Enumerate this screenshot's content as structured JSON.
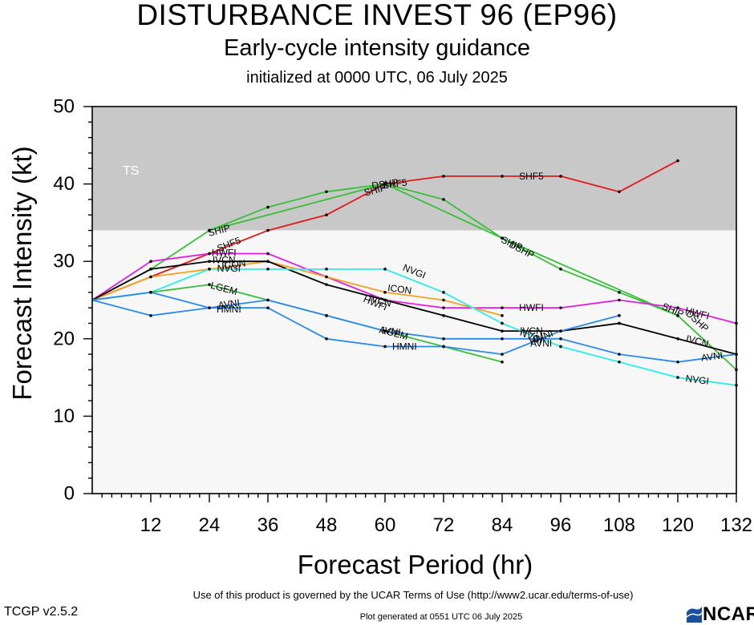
{
  "header": {
    "title": "DISTURBANCE INVEST 96 (EP96)",
    "subtitle": "Early-cycle intensity guidance",
    "init": "initialized at 0000 UTC, 06 July 2025"
  },
  "footer": {
    "terms": "Use of this product is governed by the UCAR Terms of Use (http://www2.ucar.edu/terms-of-use)",
    "version": "TCGP v2.5.2",
    "generated": "Plot generated at 0551 UTC   06 July 2025",
    "logo_text": "NCAR"
  },
  "chart_data": {
    "type": "line",
    "xlabel": "Forecast Period (hr)",
    "ylabel": "Forecast Intensity (kt)",
    "xlim": [
      0,
      132
    ],
    "ylim": [
      0,
      50
    ],
    "x_ticks": [
      12,
      24,
      36,
      48,
      60,
      72,
      84,
      96,
      108,
      120,
      132
    ],
    "y_ticks": [
      0,
      10,
      20,
      30,
      40,
      50
    ],
    "bands": [
      {
        "label": "TS",
        "from": 34,
        "to": 50,
        "color": "#c8c8c8"
      },
      {
        "label": "",
        "from": 0,
        "to": 34,
        "color": "#f7f7f7"
      }
    ],
    "series": [
      {
        "name": "SHF5",
        "color": "#e8161b",
        "x": [
          0,
          12,
          24,
          36,
          48,
          60,
          72,
          84,
          96,
          108,
          120
        ],
        "y": [
          25,
          28,
          31,
          34,
          36,
          40,
          41,
          41,
          41,
          39,
          43
        ],
        "labels": [
          {
            "x": 28,
            "y": 32.2
          },
          {
            "x": 62,
            "y": 40
          },
          {
            "x": 90,
            "y": 41
          }
        ]
      },
      {
        "name": "DSHP",
        "color": "#37c037",
        "x": [
          0,
          12,
          24,
          36,
          48,
          60,
          72,
          84,
          96,
          108,
          120,
          132
        ],
        "y": [
          25,
          29,
          34,
          37,
          39,
          40,
          38,
          33,
          29,
          26,
          23,
          16
        ],
        "labels": [
          {
            "x": 60,
            "y": 40
          },
          {
            "x": 88,
            "y": 31.5
          },
          {
            "x": 124,
            "y": 22.3
          }
        ]
      },
      {
        "name": "SHIP",
        "color": "#37c037",
        "x": [
          24,
          60,
          84,
          120
        ],
        "y": [
          34,
          40,
          33,
          23
        ],
        "labels": [
          {
            "x": 26,
            "y": 34
          },
          {
            "x": 58,
            "y": 39.2
          },
          {
            "x": 86,
            "y": 32.3
          },
          {
            "x": 119,
            "y": 23.7
          }
        ]
      },
      {
        "name": "HWFI",
        "color": "#e21ee2",
        "x": [
          0,
          12,
          24,
          36,
          48,
          60,
          72,
          84,
          96,
          108,
          120,
          132
        ],
        "y": [
          25,
          30,
          31,
          31,
          28,
          25,
          24,
          24,
          24,
          25,
          24,
          22
        ],
        "labels": [
          {
            "x": 27,
            "y": 31.1
          },
          {
            "x": 58,
            "y": 24.6
          },
          {
            "x": 90,
            "y": 24
          },
          {
            "x": 124,
            "y": 23.3
          }
        ]
      },
      {
        "name": "ICON",
        "color": "#f5a01d",
        "x": [
          0,
          12,
          24,
          36,
          48,
          60,
          72,
          84
        ],
        "y": [
          25,
          28,
          29,
          30,
          28,
          26,
          25,
          23
        ],
        "labels": [
          {
            "x": 29,
            "y": 29.6
          },
          {
            "x": 63,
            "y": 26.4
          }
        ]
      },
      {
        "name": "IVCN",
        "color": "#000000",
        "x": [
          0,
          12,
          24,
          36,
          48,
          60,
          72,
          84,
          96,
          108,
          120,
          132
        ],
        "y": [
          25,
          29,
          30,
          30,
          27,
          25,
          23,
          21,
          21,
          22,
          20,
          18
        ],
        "labels": [
          {
            "x": 27,
            "y": 30.2
          },
          {
            "x": 59,
            "y": 24.9
          },
          {
            "x": 90,
            "y": 21
          },
          {
            "x": 124,
            "y": 19.7
          }
        ]
      },
      {
        "name": "NVGI",
        "color": "#26eeea",
        "x": [
          0,
          12,
          24,
          36,
          48,
          60,
          72,
          84,
          96,
          108,
          120,
          132
        ],
        "y": [
          25,
          26,
          29,
          29,
          29,
          29,
          26,
          22,
          19,
          17,
          15,
          14
        ],
        "labels": [
          {
            "x": 28,
            "y": 29.1
          },
          {
            "x": 66,
            "y": 28.7
          },
          {
            "x": 90,
            "y": 20.3
          },
          {
            "x": 124,
            "y": 14.7
          }
        ]
      },
      {
        "name": "LGEM",
        "color": "#37c037",
        "x": [
          12,
          24,
          36,
          48,
          60,
          72,
          84
        ],
        "y": [
          26,
          27,
          25,
          23,
          21,
          19,
          17
        ],
        "labels": [
          {
            "x": 27,
            "y": 26.5
          },
          {
            "x": 62,
            "y": 20.7
          }
        ]
      },
      {
        "name": "AVNI",
        "color": "#2b8ae8",
        "x": [
          0,
          12,
          24,
          36,
          48,
          60,
          72,
          84,
          96,
          108,
          120,
          132
        ],
        "y": [
          25,
          26,
          24,
          25,
          23,
          21,
          20,
          20,
          20,
          18,
          17,
          18
        ],
        "labels": [
          {
            "x": 28,
            "y": 24.5
          },
          {
            "x": 61,
            "y": 21
          },
          {
            "x": 92,
            "y": 19.4
          },
          {
            "x": 127,
            "y": 17.7
          }
        ]
      },
      {
        "name": "HMNI",
        "color": "#2b8ae8",
        "x": [
          0,
          12,
          24,
          36,
          48,
          60,
          72,
          84,
          96,
          108
        ],
        "y": [
          25,
          23,
          24,
          24,
          20,
          19,
          19,
          18,
          21,
          23
        ],
        "labels": [
          {
            "x": 28,
            "y": 23.8
          },
          {
            "x": 64,
            "y": 19
          },
          {
            "x": 92,
            "y": 20.2
          }
        ]
      }
    ]
  }
}
